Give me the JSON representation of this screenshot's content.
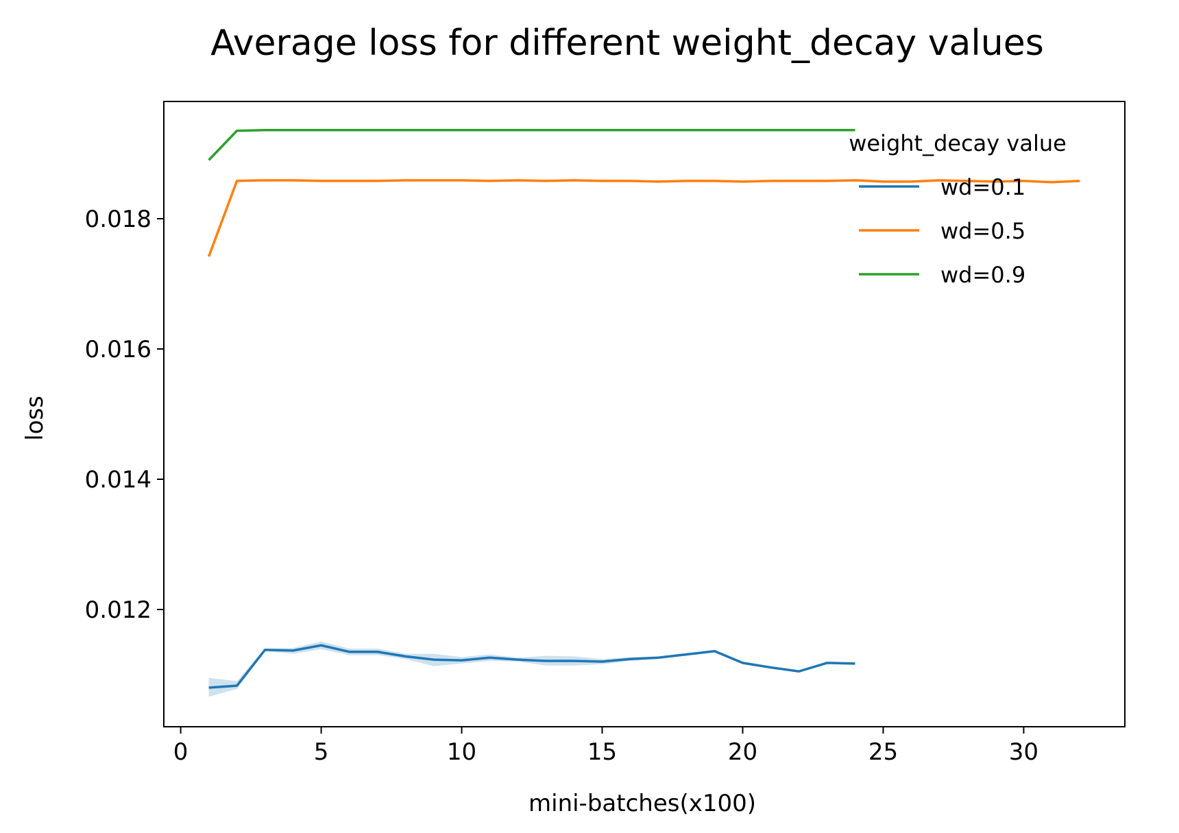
{
  "chart_data": {
    "type": "line",
    "title": "Average loss for different weight_decay values",
    "xlabel": "mini-batches(x100)",
    "ylabel": "loss",
    "xlim": [
      -0.6,
      33.6
    ],
    "ylim": [
      0.0102,
      0.0198
    ],
    "xticks": [
      0,
      5,
      10,
      15,
      20,
      25,
      30
    ],
    "yticks": [
      0.012,
      0.014,
      0.016,
      0.018
    ],
    "ytick_labels": [
      "0.012",
      "0.014",
      "0.016",
      "0.018"
    ],
    "grid": false,
    "legend": {
      "title": "weight_decay value",
      "placement": "top-right"
    },
    "series": [
      {
        "name": "wd=0.1",
        "color": "#1f77b4",
        "x": [
          1,
          2,
          3,
          4,
          5,
          6,
          7,
          8,
          9,
          10,
          11,
          12,
          13,
          14,
          15,
          16,
          17,
          18,
          19,
          20,
          21,
          22,
          23,
          24
        ],
        "values": [
          0.0108,
          0.01083,
          0.01138,
          0.01137,
          0.01145,
          0.01135,
          0.01135,
          0.01128,
          0.01123,
          0.01122,
          0.01126,
          0.01123,
          0.01121,
          0.01121,
          0.0112,
          0.01124,
          0.01126,
          0.01131,
          0.01136,
          0.01118,
          0.01111,
          0.01105,
          0.01118,
          0.01117
        ],
        "band_lower": [
          0.01066,
          0.01078,
          0.01136,
          0.01132,
          0.01139,
          0.0113,
          0.0113,
          0.01124,
          0.01113,
          0.01117,
          0.01121,
          0.0112,
          0.01114,
          0.01114,
          0.01116,
          0.01121,
          0.01124,
          0.01129,
          0.01134,
          0.01116,
          0.01109,
          0.01103,
          0.01116,
          0.01115
        ],
        "band_upper": [
          0.01095,
          0.0109,
          0.0114,
          0.01141,
          0.01151,
          0.0114,
          0.0114,
          0.01132,
          0.01132,
          0.01127,
          0.01131,
          0.01126,
          0.01129,
          0.01128,
          0.01124,
          0.01127,
          0.01128,
          0.01133,
          0.01138,
          0.0112,
          0.01113,
          0.01107,
          0.0112,
          0.01119
        ]
      },
      {
        "name": "wd=0.5",
        "color": "#ff7f0e",
        "x": [
          1,
          2,
          3,
          4,
          5,
          6,
          7,
          8,
          9,
          10,
          11,
          12,
          13,
          14,
          15,
          16,
          17,
          18,
          19,
          20,
          21,
          22,
          23,
          24,
          25,
          26,
          27,
          28,
          29,
          30,
          31,
          32
        ],
        "values": [
          0.01742,
          0.01858,
          0.01859,
          0.01859,
          0.01858,
          0.01858,
          0.01858,
          0.01859,
          0.01859,
          0.01859,
          0.01858,
          0.01859,
          0.01858,
          0.01859,
          0.01858,
          0.01858,
          0.01857,
          0.01858,
          0.01858,
          0.01857,
          0.01858,
          0.01858,
          0.01858,
          0.01859,
          0.01857,
          0.01857,
          0.01859,
          0.01858,
          0.01857,
          0.01858,
          0.01856,
          0.01858
        ]
      },
      {
        "name": "wd=0.9",
        "color": "#2ca02c",
        "x": [
          1,
          2,
          3,
          4,
          5,
          6,
          7,
          8,
          9,
          10,
          11,
          12,
          13,
          14,
          15,
          16,
          17,
          18,
          19,
          20,
          21,
          22,
          23,
          24
        ],
        "values": [
          0.0189,
          0.01935,
          0.01936,
          0.01936,
          0.01936,
          0.01936,
          0.01936,
          0.01936,
          0.01936,
          0.01936,
          0.01936,
          0.01936,
          0.01936,
          0.01936,
          0.01936,
          0.01936,
          0.01936,
          0.01936,
          0.01936,
          0.01936,
          0.01936,
          0.01936,
          0.01936,
          0.01936
        ]
      }
    ]
  }
}
